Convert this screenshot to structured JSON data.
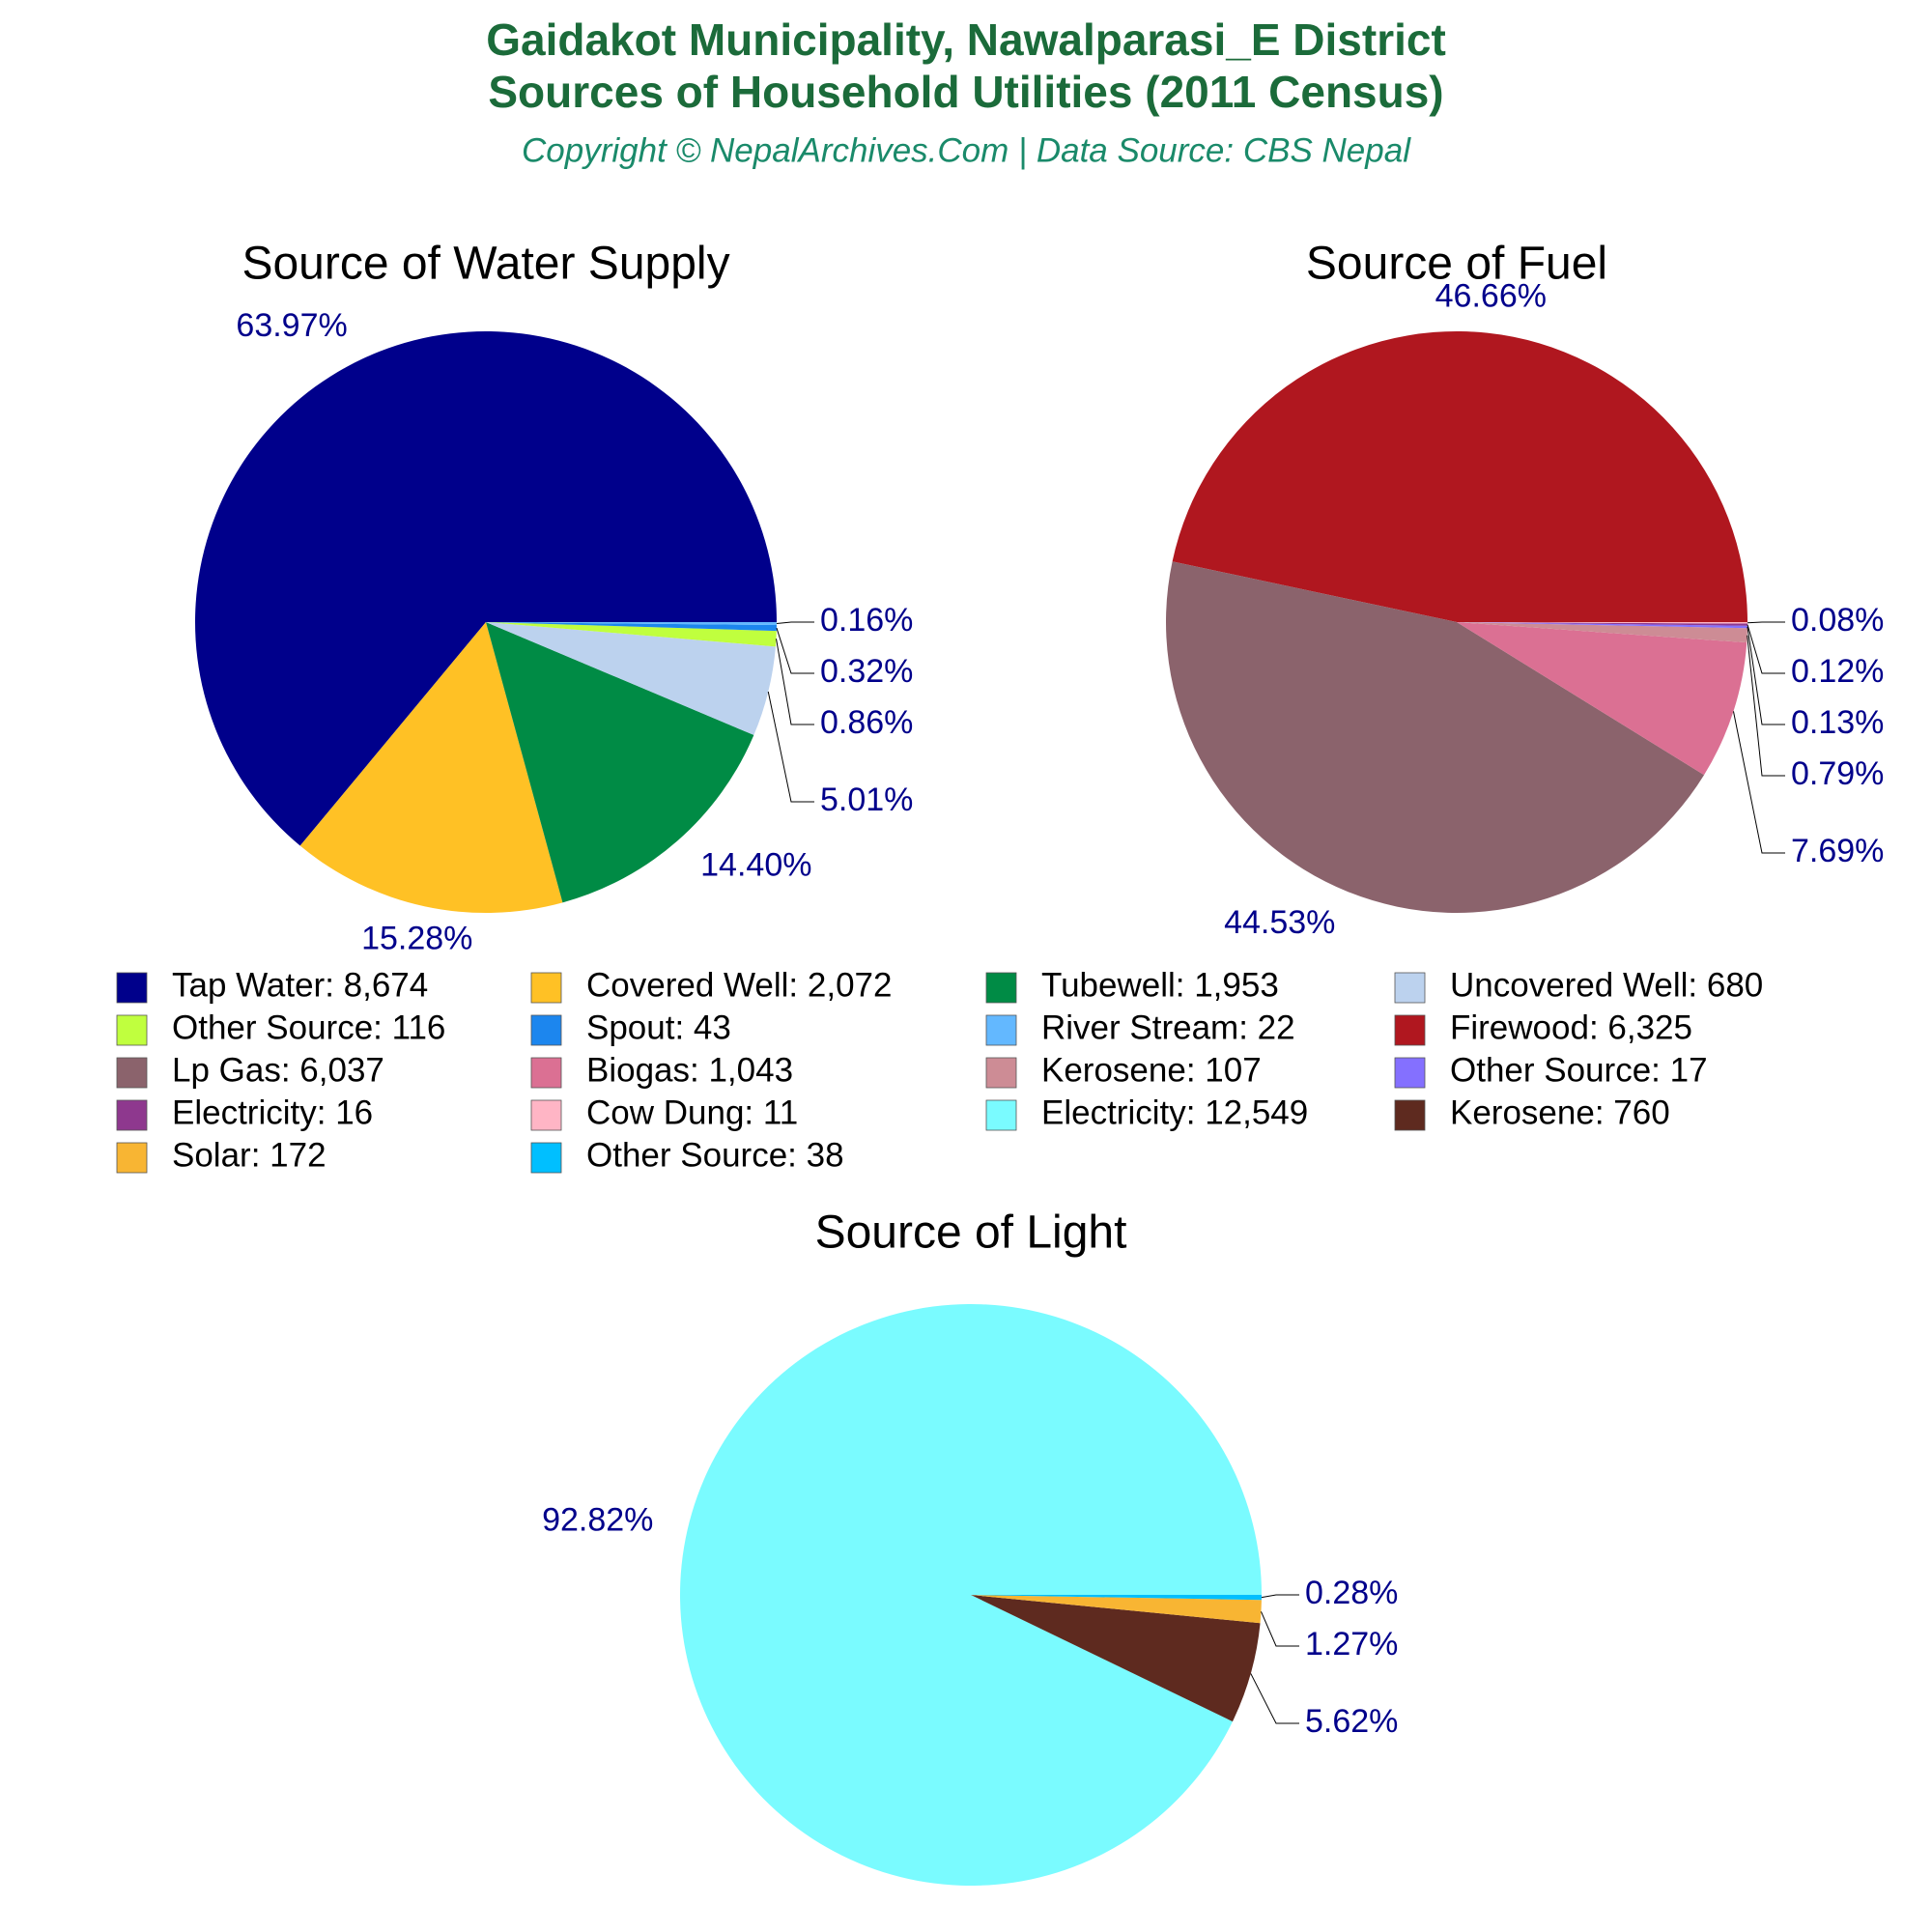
{
  "header": {
    "title_lines": [
      "Gaidakot Municipality, Nawalparasi_E District",
      "Sources of Household Utilities (2011 Census)"
    ],
    "subtitle": "Copyright © NepalArchives.Com | Data Source: CBS Nepal"
  },
  "chart_data": [
    {
      "type": "pie",
      "title": "Source of Water Supply",
      "categories": [
        "Tap Water: 8,674",
        "Covered Well: 2,072",
        "Tubewell: 1,953",
        "Uncovered Well: 680",
        "Other Source: 116",
        "Spout: 43",
        "River Stream: 22"
      ],
      "colors": [
        "#00008B",
        "#FFC125",
        "#008B45",
        "#BCD2EE",
        "#C0FF3E",
        "#1C86EE",
        "#63B8FF"
      ],
      "values": [
        63.97,
        15.28,
        14.4,
        5.01,
        0.86,
        0.32,
        0.16
      ],
      "value_labels": [
        "63.97%",
        "15.28%",
        "14.40%",
        "5.01%",
        "0.86%",
        "0.32%",
        "0.16%"
      ]
    },
    {
      "type": "pie",
      "title": "Source of Fuel",
      "categories": [
        "Firewood: 6,325",
        "Lp Gas: 6,037",
        "Biogas: 1,043",
        "Kerosene: 107",
        "Other Source: 17",
        "Electricity: 16",
        "Cow Dung: 11"
      ],
      "colors": [
        "#B0171F",
        "#8B636C",
        "#DB7093",
        "#CD8C95",
        "#8470FF",
        "#8E388E",
        "#FFB5C5"
      ],
      "values": [
        46.66,
        44.53,
        7.69,
        0.79,
        0.13,
        0.12,
        0.08
      ],
      "value_labels": [
        "46.66%",
        "44.53%",
        "7.69%",
        "0.79%",
        "0.13%",
        "0.12%",
        "0.08%"
      ]
    },
    {
      "type": "pie",
      "title": "Source of Light",
      "categories": [
        "Electricity: 12,549",
        "Kerosene: 760",
        "Solar: 172",
        "Other Source: 38"
      ],
      "colors": [
        "#7AFBFF",
        "#5E2A1F",
        "#F8B533",
        "#00BFFF"
      ],
      "values": [
        92.82,
        5.62,
        1.27,
        0.28
      ],
      "value_labels": [
        "92.82%",
        "5.62%",
        "1.27%",
        "0.28%"
      ]
    }
  ]
}
